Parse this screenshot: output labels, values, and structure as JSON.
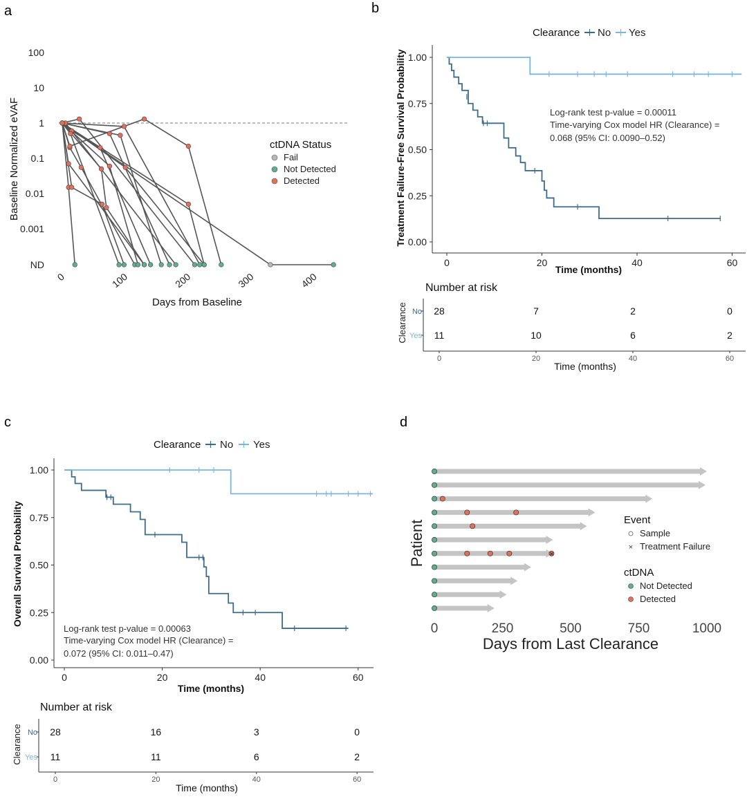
{
  "colors": {
    "no": "#3d6b8c",
    "yes": "#7ab6e0",
    "detected": "#e2705a",
    "not_detected": "#5fae8e",
    "fail": "#b8b8b8",
    "line": "#555555",
    "arrow": "#c4c4c4"
  },
  "panel_a": {
    "letter": "a",
    "ylabel": "Baseline Normalized eVAF",
    "xlabel": "Days from Baseline",
    "legend_title": "ctDNA Status",
    "legend_items": [
      "Fail",
      "Not Detected",
      "Detected"
    ]
  },
  "panel_b": {
    "letter": "b",
    "legend_title": "Clearance",
    "legend_no": "No",
    "legend_yes": "Yes",
    "ylabel": "Treatment Failure-Free Survival Probability",
    "xlabel": "Time (months)",
    "annotation": [
      "Log-rank test p-value = 0.00011",
      "Time-varying Cox model HR (Clearance) =",
      "0.068 (95% CI: 0.0090–0.52)"
    ],
    "risk_title": "Number at risk",
    "risk_ylabel": "Clearance",
    "risk_xlabel": "Time (months)"
  },
  "panel_c": {
    "letter": "c",
    "legend_title": "Clearance",
    "legend_no": "No",
    "legend_yes": "Yes",
    "ylabel": "Overall Survival Probability",
    "xlabel": "Time (months)",
    "annotation": [
      "Log-rank test p-value = 0.00063",
      "Time-varying Cox model HR (Clearance) =",
      "0.072 (95% CI: 0.011–0.47)"
    ],
    "risk_title": "Number at risk",
    "risk_ylabel": "Clearance",
    "risk_xlabel": "Time (months)"
  },
  "panel_d": {
    "letter": "d",
    "ylabel": "Patient",
    "xlabel": "Days from Last Clearance",
    "legend_event_title": "Event",
    "legend_event_items": [
      "Sample",
      "Treatment Failure"
    ],
    "legend_ctdna_title": "ctDNA",
    "legend_ctdna_items": [
      "Not Detected",
      "Detected"
    ]
  },
  "chart_data": [
    {
      "panel": "a",
      "type": "line",
      "xlabel": "Days from Baseline",
      "ylabel": "Baseline Normalized eVAF",
      "xlim": [
        0,
        430
      ],
      "x_ticks": [
        "0",
        "100",
        "200",
        "300",
        "400"
      ],
      "y_ticks": [
        "100",
        "10",
        "1",
        "0.1",
        "0.01",
        "0.001",
        "ND"
      ],
      "y_scale": "log",
      "reference_line": 1,
      "legend": "right",
      "series": [
        {
          "x": [
            0,
            10,
            20
          ],
          "y": [
            1,
            0.015,
            "ND"
          ],
          "status": [
            "Detected",
            "Detected",
            "Not Detected"
          ]
        },
        {
          "x": [
            0,
            5,
            180
          ],
          "y": [
            1,
            1,
            "ND"
          ],
          "status": [
            "Detected",
            "Detected",
            "Not Detected"
          ]
        },
        {
          "x": [
            0,
            12,
            30,
            115
          ],
          "y": [
            1,
            0.2,
            0.055,
            "ND"
          ],
          "status": [
            "Detected",
            "Detected",
            "Detected",
            "Not Detected"
          ]
        },
        {
          "x": [
            0,
            10,
            130
          ],
          "y": [
            1,
            0.07,
            "ND"
          ],
          "status": [
            "Detected",
            "Detected",
            "Not Detected"
          ]
        },
        {
          "x": [
            0,
            15,
            60,
            140
          ],
          "y": [
            1,
            0.6,
            0.2,
            "ND"
          ],
          "status": [
            "Detected",
            "Detected",
            "Detected",
            "Not Detected"
          ]
        },
        {
          "x": [
            0,
            13,
            90
          ],
          "y": [
            1,
            0.5,
            "ND"
          ],
          "status": [
            "Detected",
            "Detected",
            "Not Detected"
          ]
        },
        {
          "x": [
            0,
            27,
            210
          ],
          "y": [
            1,
            1.3,
            "ND"
          ],
          "status": [
            "Detected",
            "Detected",
            "Not Detected"
          ]
        },
        {
          "x": [
            0,
            75,
            170
          ],
          "y": [
            1,
            0.5,
            "ND"
          ],
          "status": [
            "Detected",
            "Detected",
            "Not Detected"
          ]
        },
        {
          "x": [
            0,
            92,
            157
          ],
          "y": [
            1,
            0.45,
            "ND"
          ],
          "status": [
            "Detected",
            "Detected",
            "Not Detected"
          ]
        },
        {
          "x": [
            0,
            98,
            218
          ],
          "y": [
            1,
            0.8,
            "ND"
          ],
          "status": [
            "Detected",
            "Detected",
            "Not Detected"
          ]
        },
        {
          "x": [
            0,
            100,
            225
          ],
          "y": [
            1,
            0.055,
            "ND"
          ],
          "status": [
            "Detected",
            "Detected",
            "Not Detected"
          ]
        },
        {
          "x": [
            0,
            12,
            130,
            200,
            252
          ],
          "y": [
            1,
            0.22,
            1.3,
            0.22,
            "ND"
          ],
          "status": [
            "Detected",
            "Detected",
            "Detected",
            "Detected",
            "Not Detected"
          ]
        },
        {
          "x": [
            0,
            62,
            70,
            130
          ],
          "y": [
            1,
            0.05,
            0.004,
            "ND"
          ],
          "status": [
            "Detected",
            "Detected",
            "Detected",
            "Not Detected"
          ]
        },
        {
          "x": [
            0,
            75,
            120
          ],
          "y": [
            1,
            0.06,
            "ND"
          ],
          "status": [
            "Detected",
            "Detected",
            "Not Detected"
          ]
        },
        {
          "x": [
            0,
            15,
            63,
            98
          ],
          "y": [
            1,
            0.015,
            0.005,
            "ND"
          ],
          "status": [
            "Detected",
            "Detected",
            "Detected",
            "Not Detected"
          ]
        },
        {
          "x": [
            0,
            200,
            225
          ],
          "y": [
            1,
            0.005,
            "ND"
          ],
          "status": [
            "Detected",
            "Detected",
            "Not Detected"
          ]
        },
        {
          "x": [
            0,
            330,
            430
          ],
          "y": [
            1,
            "ND",
            "ND"
          ],
          "status": [
            "Detected",
            "Fail",
            "Not Detected"
          ]
        }
      ]
    },
    {
      "panel": "b",
      "type": "line",
      "title": "",
      "xlabel": "Time (months)",
      "ylabel": "Treatment Failure-Free Survival Probability",
      "xlim": [
        0,
        60
      ],
      "ylim": [
        0,
        1
      ],
      "x_ticks": [
        "0",
        "20",
        "40",
        "60"
      ],
      "y_ticks": [
        "0.00",
        "0.25",
        "0.50",
        "0.75",
        "1.00"
      ],
      "series": [
        {
          "name": "No",
          "steps": [
            [
              0,
              1.0
            ],
            [
              0.5,
              0.964
            ],
            [
              1.0,
              0.929
            ],
            [
              1.5,
              0.893
            ],
            [
              2.5,
              0.857
            ],
            [
              3.2,
              0.821
            ],
            [
              4.5,
              0.75
            ],
            [
              5.5,
              0.714
            ],
            [
              6.5,
              0.678
            ],
            [
              7.5,
              0.643
            ],
            [
              12.0,
              0.563
            ],
            [
              13.0,
              0.51
            ],
            [
              14.5,
              0.466
            ],
            [
              15.5,
              0.43
            ],
            [
              16.5,
              0.386
            ],
            [
              20.0,
              0.33
            ],
            [
              20.5,
              0.28
            ],
            [
              21.0,
              0.238
            ],
            [
              22.5,
              0.19
            ],
            [
              32.0,
              0.127
            ],
            [
              57.5,
              0.127
            ]
          ],
          "censor": [
            [
              4.2,
              0.786
            ],
            [
              7.7,
              0.643
            ],
            [
              8.5,
              0.643
            ],
            [
              18.5,
              0.386
            ],
            [
              27.5,
              0.19
            ],
            [
              46.5,
              0.127
            ],
            [
              57.5,
              0.127
            ]
          ]
        },
        {
          "name": "Yes",
          "steps": [
            [
              0,
              1.0
            ],
            [
              17.5,
              1.0
            ],
            [
              17.5,
              0.909
            ],
            [
              62,
              0.909
            ]
          ],
          "censor": [
            [
              21.5,
              0.909
            ],
            [
              27.5,
              0.909
            ],
            [
              31.0,
              0.909
            ],
            [
              33.5,
              0.909
            ],
            [
              38.0,
              0.909
            ],
            [
              47.5,
              0.909
            ],
            [
              52.0,
              0.909
            ],
            [
              55.0,
              0.909
            ],
            [
              60.0,
              0.909
            ]
          ]
        }
      ],
      "risk_table": {
        "times": [
          0,
          20,
          40,
          60
        ],
        "No": [
          28,
          7,
          2,
          0
        ],
        "Yes": [
          11,
          10,
          6,
          2
        ]
      }
    },
    {
      "panel": "c",
      "type": "line",
      "xlabel": "Time (months)",
      "ylabel": "Overall Survival Probability",
      "xlim": [
        0,
        60
      ],
      "ylim": [
        0,
        1
      ],
      "x_ticks": [
        "0",
        "20",
        "40",
        "60"
      ],
      "y_ticks": [
        "0.00",
        "0.25",
        "0.50",
        "0.75",
        "1.00"
      ],
      "series": [
        {
          "name": "No",
          "steps": [
            [
              0,
              1.0
            ],
            [
              1.5,
              0.964
            ],
            [
              2.2,
              0.929
            ],
            [
              3.5,
              0.893
            ],
            [
              8.5,
              0.857
            ],
            [
              10.0,
              0.82
            ],
            [
              13.5,
              0.78
            ],
            [
              15.5,
              0.74
            ],
            [
              16.5,
              0.66
            ],
            [
              24.0,
              0.62
            ],
            [
              25.0,
              0.54
            ],
            [
              28.5,
              0.49
            ],
            [
              29.0,
              0.44
            ],
            [
              29.5,
              0.35
            ],
            [
              33.5,
              0.3
            ],
            [
              34.5,
              0.25
            ],
            [
              44.5,
              0.167
            ],
            [
              58,
              0.167
            ]
          ],
          "censor": [
            [
              8.7,
              0.857
            ],
            [
              9.5,
              0.857
            ],
            [
              18.5,
              0.66
            ],
            [
              27.5,
              0.54
            ],
            [
              28.3,
              0.54
            ],
            [
              36.5,
              0.25
            ],
            [
              39.0,
              0.25
            ],
            [
              47.0,
              0.167
            ],
            [
              57.5,
              0.167
            ]
          ]
        },
        {
          "name": "Yes",
          "steps": [
            [
              0,
              1.0
            ],
            [
              34.0,
              1.0
            ],
            [
              34.0,
              0.875
            ],
            [
              63,
              0.875
            ]
          ],
          "censor": [
            [
              21.5,
              1.0
            ],
            [
              27.5,
              1.0
            ],
            [
              30.5,
              1.0
            ],
            [
              51.5,
              0.875
            ],
            [
              53.5,
              0.875
            ],
            [
              54.5,
              0.875
            ],
            [
              58.0,
              0.875
            ],
            [
              60.0,
              0.875
            ],
            [
              62.5,
              0.875
            ]
          ]
        }
      ],
      "risk_table": {
        "times": [
          0,
          20,
          40,
          60
        ],
        "No": [
          28,
          16,
          3,
          0
        ],
        "Yes": [
          11,
          11,
          6,
          2
        ]
      }
    },
    {
      "panel": "d",
      "type": "scatter",
      "xlabel": "Days from Last Clearance",
      "ylabel": "Patient",
      "xlim": [
        0,
        1000
      ],
      "x_ticks": [
        "0",
        "250",
        "500",
        "750",
        "1000"
      ],
      "patients": [
        {
          "end": 995,
          "samples": [
            {
              "x": 0,
              "ctdna": "Not Detected"
            }
          ]
        },
        {
          "end": 990,
          "samples": [
            {
              "x": 0,
              "ctdna": "Not Detected"
            }
          ]
        },
        {
          "end": 795,
          "samples": [
            {
              "x": 0,
              "ctdna": "Not Detected"
            },
            {
              "x": 30,
              "ctdna": "Detected"
            }
          ]
        },
        {
          "end": 585,
          "samples": [
            {
              "x": 0,
              "ctdna": "Not Detected"
            },
            {
              "x": 120,
              "ctdna": "Detected"
            },
            {
              "x": 300,
              "ctdna": "Detected"
            }
          ]
        },
        {
          "end": 555,
          "samples": [
            {
              "x": 0,
              "ctdna": "Not Detected"
            },
            {
              "x": 140,
              "ctdna": "Detected"
            }
          ]
        },
        {
          "end": 430,
          "samples": [
            {
              "x": 0,
              "ctdna": "Not Detected"
            }
          ]
        },
        {
          "end": 430,
          "failure": 430,
          "samples": [
            {
              "x": 0,
              "ctdna": "Not Detected"
            },
            {
              "x": 120,
              "ctdna": "Detected"
            },
            {
              "x": 205,
              "ctdna": "Detected"
            },
            {
              "x": 275,
              "ctdna": "Detected"
            },
            {
              "x": 430,
              "ctdna": "Detected"
            }
          ]
        },
        {
          "end": 350,
          "samples": [
            {
              "x": 0,
              "ctdna": "Not Detected"
            }
          ]
        },
        {
          "end": 300,
          "samples": [
            {
              "x": 0,
              "ctdna": "Not Detected"
            }
          ]
        },
        {
          "end": 260,
          "samples": [
            {
              "x": 0,
              "ctdna": "Not Detected"
            }
          ]
        },
        {
          "end": 215,
          "samples": [
            {
              "x": 0,
              "ctdna": "Not Detected"
            }
          ]
        }
      ]
    }
  ]
}
